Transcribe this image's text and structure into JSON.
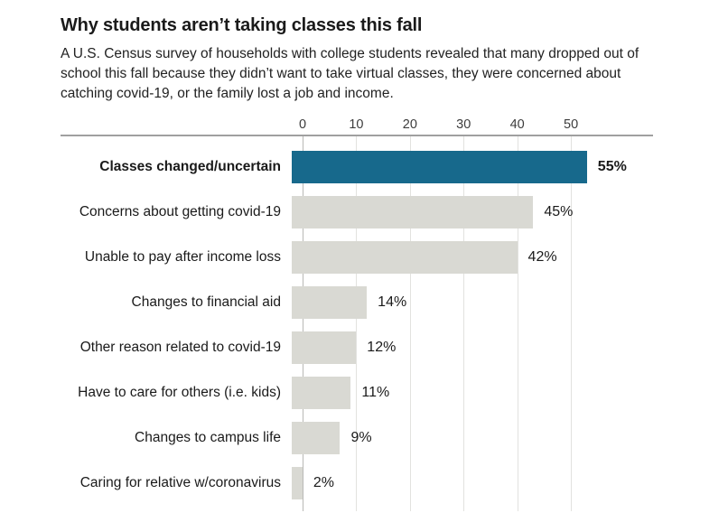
{
  "header": {
    "title": "Why students aren’t taking classes this fall",
    "subtitle": "A U.S. Census survey of households with college students revealed that many dropped out of school this fall because they didn’t want to take virtual classes, they were concerned about catching covid-19, or the family lost a job and income."
  },
  "colors": {
    "highlight_bar": "#17698c",
    "default_bar": "#d9d9d3",
    "gridline": "#e2e2df",
    "zero_line": "#b9b9b6",
    "axis_rule": "#a0a0a0",
    "title_text": "#1a1a1a",
    "body_text": "#222222",
    "tick_text": "#3d3d3d"
  },
  "chart_data": {
    "type": "bar",
    "orientation": "horizontal",
    "title": "Why students aren’t taking classes this fall",
    "categories": [
      "Classes changed/uncertain",
      "Concerns about getting covid-19",
      "Unable to pay after income loss",
      "Changes to financial aid",
      "Other reason related to covid-19",
      "Have to care for others (i.e. kids)",
      "Changes to campus life",
      "Caring for relative w/coronavirus"
    ],
    "values": [
      55,
      45,
      42,
      14,
      12,
      11,
      9,
      2
    ],
    "value_labels": [
      "55%",
      "45%",
      "42%",
      "14%",
      "12%",
      "11%",
      "9%",
      "2%"
    ],
    "highlighted_index": 0,
    "x_ticks": [
      0,
      10,
      20,
      30,
      40,
      50
    ],
    "xlim": [
      0,
      65.3
    ],
    "unit": "percent",
    "grid": true,
    "legend": false,
    "xlabel": "",
    "ylabel": ""
  }
}
